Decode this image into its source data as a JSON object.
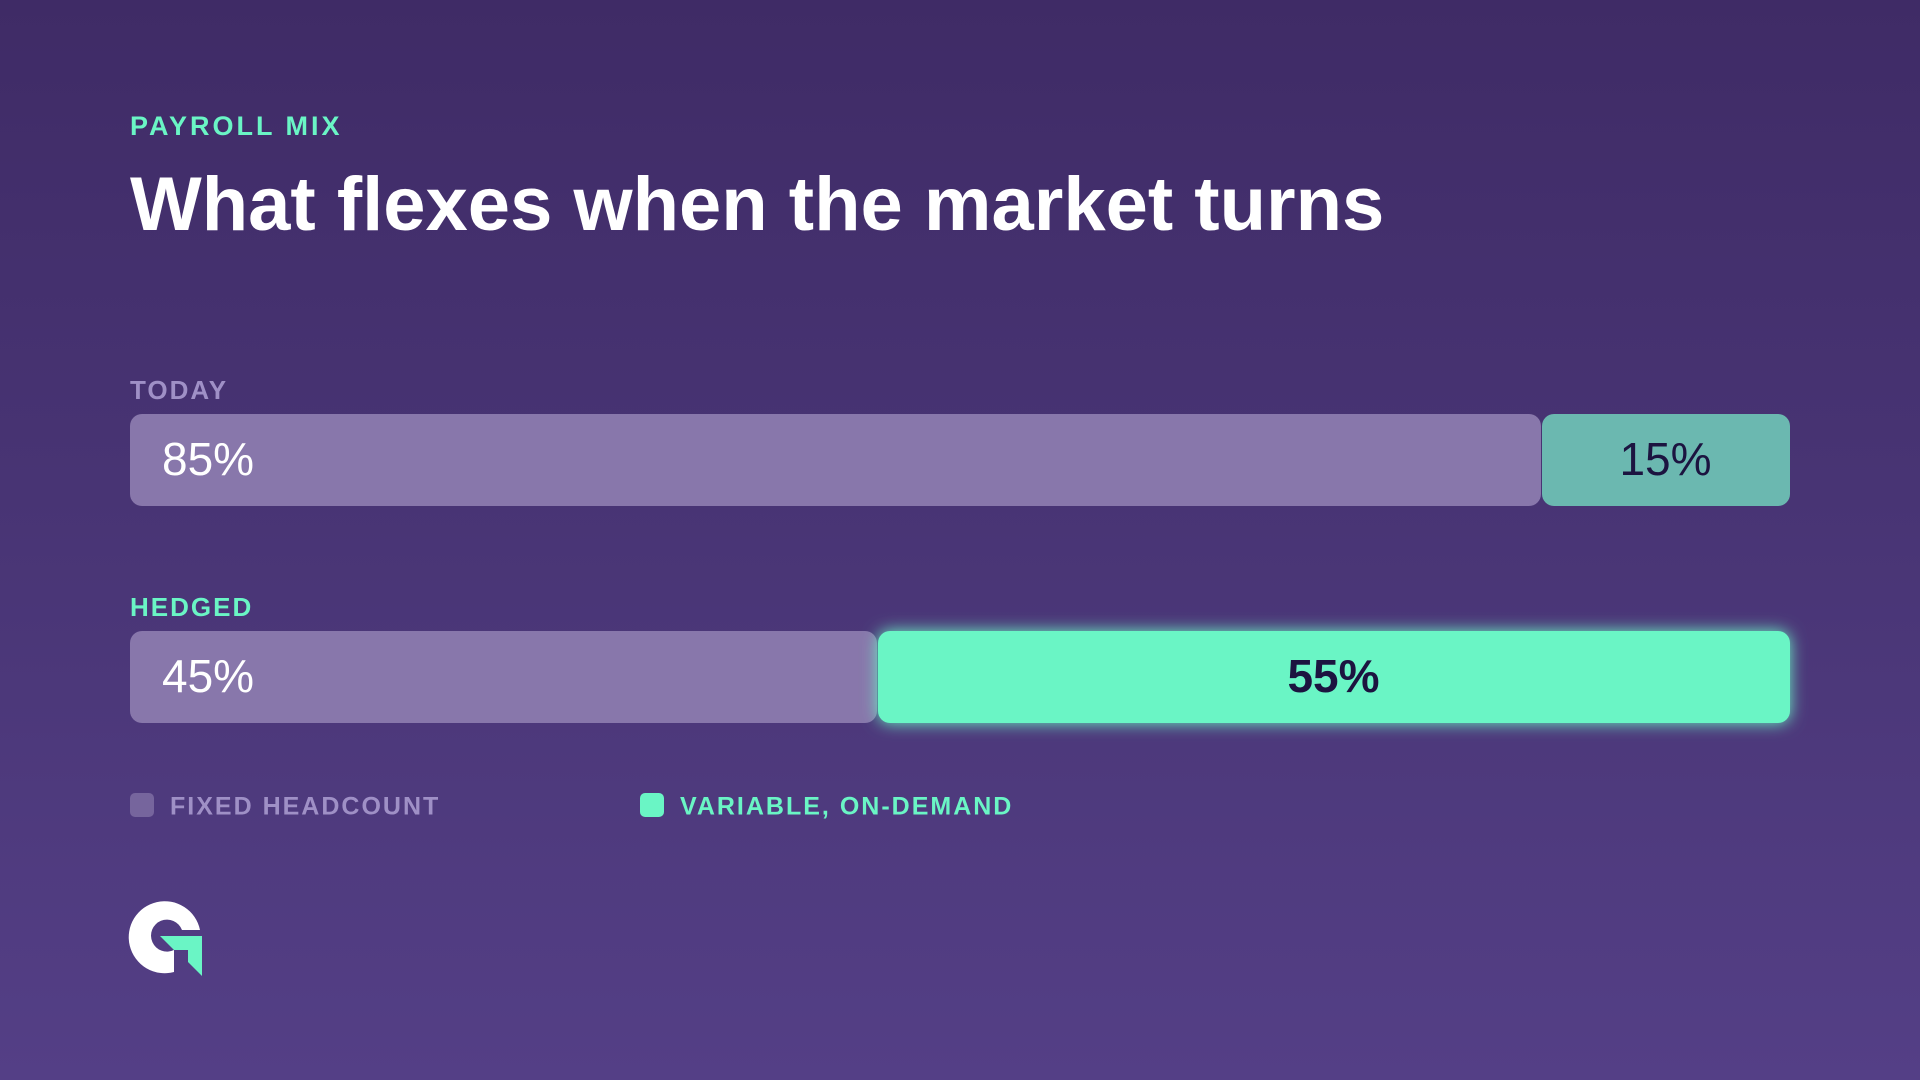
{
  "chart_data": {
    "type": "stacked-bar-horizontal",
    "eyebrow": "PAYROLL MIX",
    "title": "What flexes when the market turns",
    "categories": [
      "TODAY",
      "HEDGED"
    ],
    "category_colors": [
      "#9f90c6",
      "#6af5c5"
    ],
    "xlim": [
      0,
      100
    ],
    "series": [
      {
        "name": "FIXED HEADCOUNT",
        "color": "#8877ab",
        "colors": [
          "#8877ab",
          "#8877ab"
        ],
        "values": [
          85,
          45
        ],
        "value_labels": [
          "85%",
          "45%"
        ]
      },
      {
        "name": "VARIABLE, ON-DEMAND",
        "color": "#6af5c5",
        "colors": [
          "#6bb8b0",
          "#6af5c5"
        ],
        "values": [
          15,
          55
        ],
        "value_labels": [
          "15%",
          "55%"
        ]
      }
    ],
    "legend": "bottom-left"
  }
}
